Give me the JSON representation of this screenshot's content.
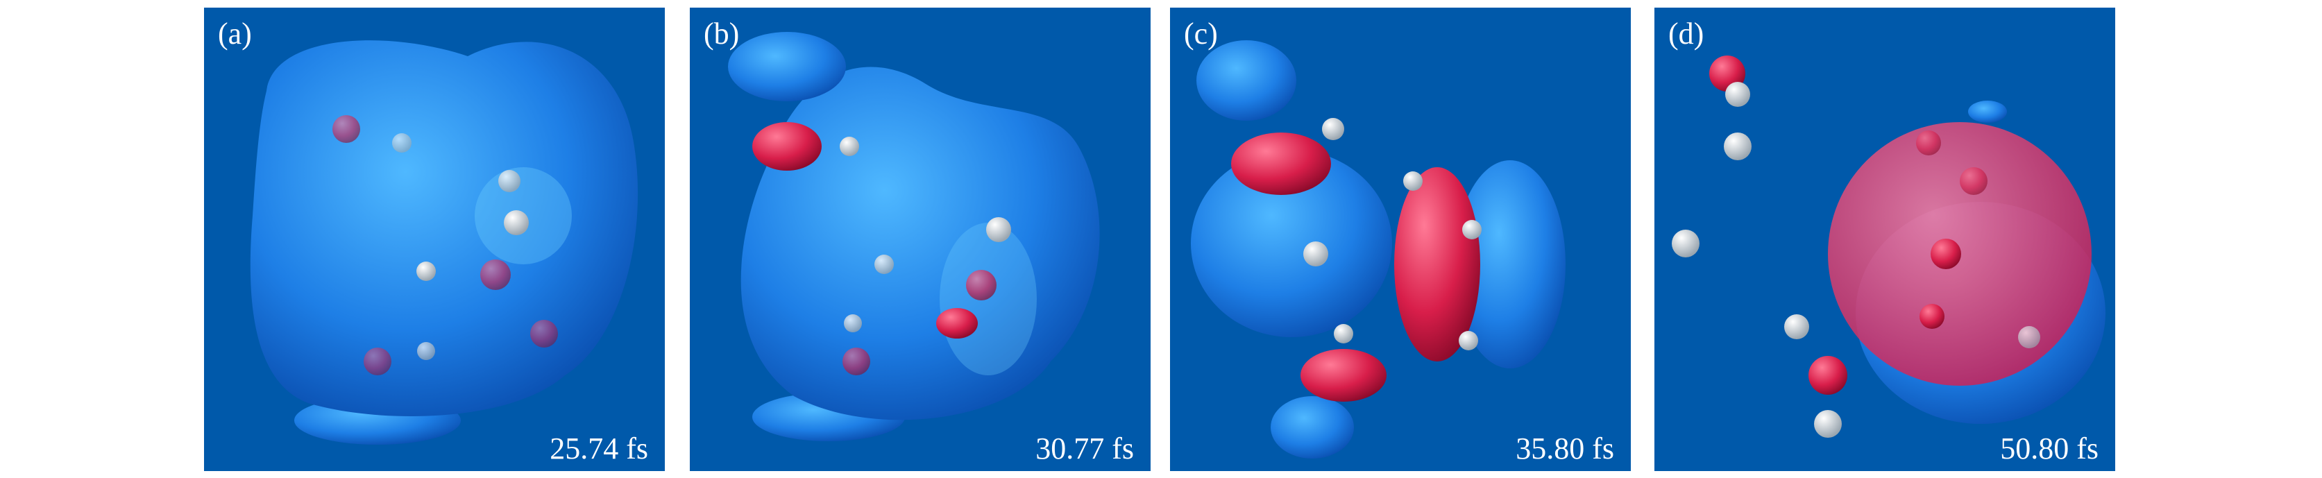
{
  "panels": [
    {
      "label": "(a)",
      "time": "25.74 fs"
    },
    {
      "label": "(b)",
      "time": "30.77 fs"
    },
    {
      "label": "(c)",
      "time": "35.80 fs"
    },
    {
      "label": "(d)",
      "time": "50.80 fs"
    }
  ]
}
